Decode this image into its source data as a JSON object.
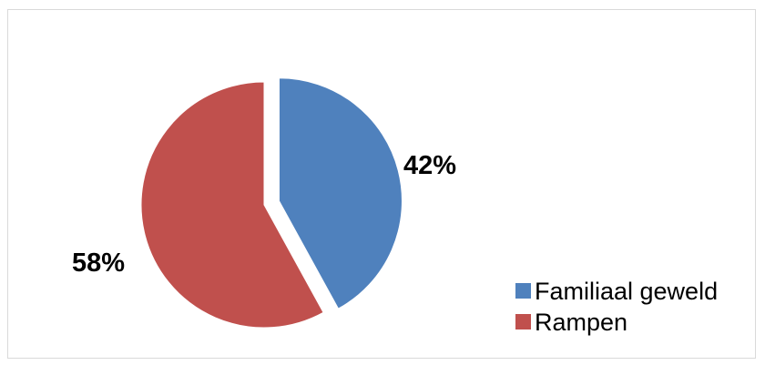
{
  "chart_data": {
    "type": "pie",
    "title": "",
    "categories": [
      "Familiaal geweld",
      "Rampen"
    ],
    "values": [
      42,
      58
    ],
    "value_labels": [
      "42%",
      "58%"
    ],
    "colors": [
      "#4f81bd",
      "#c0504d"
    ],
    "exploded": [
      true,
      false
    ],
    "legend_position": "bottom-right",
    "grid": false
  }
}
